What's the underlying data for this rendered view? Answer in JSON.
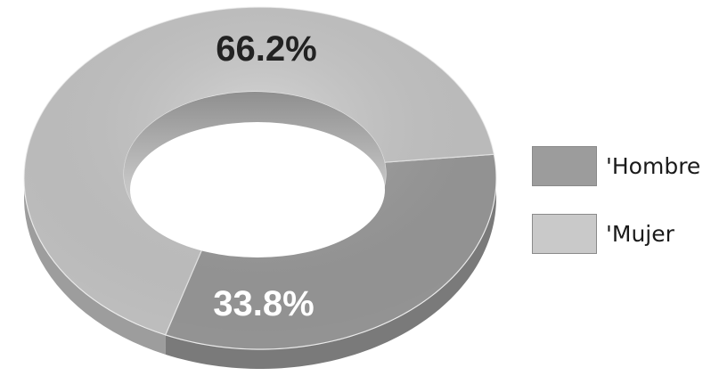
{
  "chart_data": {
    "type": "pie",
    "style": "3d-donut",
    "categories": [
      "'Hombre",
      "'Mujer"
    ],
    "values": [
      33.8,
      66.2
    ],
    "value_labels": [
      "33.8%",
      "66.2%"
    ],
    "colors": {
      "'Hombre": "#9c9c9c",
      "'Mujer": "#c9c9c9"
    },
    "legend_position": "right"
  },
  "legend": {
    "items": [
      {
        "label": "'Hombre",
        "color": "#9c9c9c"
      },
      {
        "label": "'Mujer",
        "color": "#c9c9c9"
      }
    ]
  }
}
